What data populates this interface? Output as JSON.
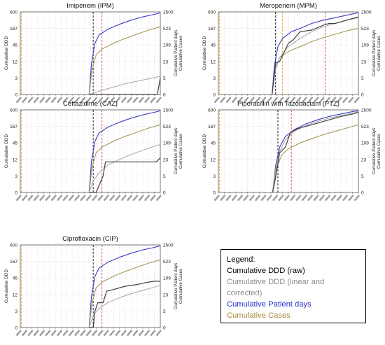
{
  "colors": {
    "raw": "#404040",
    "corrected": "#a6a6a6",
    "patient_days": "#3a3ac8",
    "cases": "#a8955a",
    "black_dash": "#222222",
    "red_dash": "#e05050",
    "orange_dash": "#f0a030",
    "grid": "#dcdcdc"
  },
  "legend": {
    "title": "Legend:",
    "items": [
      {
        "label": "Cumulative DDD (raw)",
        "color": "#000000"
      },
      {
        "label": "Cumulative DDD (linear and corrected)",
        "color": "#8c8c8c"
      },
      {
        "label": "Cumulative Patient days",
        "color": "#2a2ad0"
      },
      {
        "label": "Cumulative Cases",
        "color": "#a8893a"
      }
    ]
  },
  "chart_data": [
    {
      "type": "line",
      "title": "Imipenem (IPM)",
      "ylabel": "Cumulative DDD",
      "y2label": "Cumulative Patient days\nCumulative Cases",
      "y_ticks": [
        "600",
        "167",
        "45",
        "12",
        "3",
        "0"
      ],
      "y2_ticks": [
        "2500",
        "523",
        "109",
        "23",
        "5",
        "0"
      ],
      "x_range": [
        0,
        24
      ],
      "y_range": [
        0,
        1
      ],
      "x_tick_count": 25,
      "x_tick_labels_legible": false,
      "vlines": [
        {
          "x": 0.2,
          "style": "orange"
        },
        {
          "x": 12.5,
          "style": "black"
        },
        {
          "x": 14.0,
          "style": "red"
        }
      ],
      "series": [
        {
          "key": "patient_days",
          "points": [
            [
              11.8,
              0
            ],
            [
              12.2,
              0.38
            ],
            [
              12.8,
              0.62
            ],
            [
              13.5,
              0.72
            ],
            [
              15,
              0.79
            ],
            [
              17,
              0.85
            ],
            [
              19,
              0.9
            ],
            [
              21,
              0.94
            ],
            [
              23,
              0.97
            ],
            [
              24,
              0.99
            ]
          ]
        },
        {
          "key": "cases",
          "points": [
            [
              11.8,
              0
            ],
            [
              12.3,
              0.3
            ],
            [
              13,
              0.48
            ],
            [
              14,
              0.55
            ],
            [
              16,
              0.62
            ],
            [
              18,
              0.68
            ],
            [
              20,
              0.73
            ],
            [
              22,
              0.78
            ],
            [
              24,
              0.82
            ]
          ]
        },
        {
          "key": "corrected",
          "points": [
            [
              11.8,
              0
            ],
            [
              14,
              0.05
            ],
            [
              16,
              0.09
            ],
            [
              18,
              0.13
            ],
            [
              20,
              0.16
            ],
            [
              22,
              0.19
            ],
            [
              24,
              0.22
            ]
          ]
        },
        {
          "key": "raw",
          "points": [
            [
              11.8,
              0
            ],
            [
              23.5,
              0
            ],
            [
              24,
              0.2
            ]
          ]
        }
      ]
    },
    {
      "type": "line",
      "title": "Meropenem (MPM)",
      "ylabel": "Cumulative DDD",
      "y2label": "Cumulative Patient days\nCumulative Cases",
      "y_ticks": [
        "600",
        "167",
        "45",
        "12",
        "3",
        "0"
      ],
      "y2_ticks": [
        "2500",
        "523",
        "109",
        "23",
        "5",
        "0"
      ],
      "x_range": [
        0,
        24
      ],
      "y_range": [
        0,
        1
      ],
      "x_tick_count": 25,
      "x_tick_labels_legible": false,
      "vlines": [
        {
          "x": 0.2,
          "style": "orange"
        },
        {
          "x": 9.8,
          "style": "black"
        },
        {
          "x": 11.0,
          "style": "orange"
        },
        {
          "x": 18.3,
          "style": "red"
        }
      ],
      "series": [
        {
          "key": "patient_days",
          "points": [
            [
              9.2,
              0
            ],
            [
              9.6,
              0.35
            ],
            [
              10.2,
              0.58
            ],
            [
              11,
              0.68
            ],
            [
              12.5,
              0.76
            ],
            [
              14,
              0.8
            ],
            [
              16,
              0.86
            ],
            [
              18,
              0.9
            ],
            [
              20,
              0.93
            ],
            [
              22,
              0.96
            ],
            [
              24,
              0.99
            ]
          ]
        },
        {
          "key": "cases",
          "points": [
            [
              9.2,
              0
            ],
            [
              9.7,
              0.3
            ],
            [
              10.5,
              0.45
            ],
            [
              12,
              0.52
            ],
            [
              14,
              0.58
            ],
            [
              16,
              0.64
            ],
            [
              18,
              0.69
            ],
            [
              20,
              0.73
            ],
            [
              22,
              0.77
            ],
            [
              24,
              0.8
            ]
          ]
        },
        {
          "key": "corrected",
          "points": [
            [
              9.2,
              0
            ],
            [
              9.8,
              0.3
            ],
            [
              10.5,
              0.45
            ],
            [
              12,
              0.58
            ],
            [
              14,
              0.68
            ],
            [
              16,
              0.76
            ],
            [
              18,
              0.82
            ],
            [
              20,
              0.86
            ],
            [
              22,
              0.9
            ],
            [
              24,
              0.93
            ]
          ]
        },
        {
          "key": "raw",
          "points": [
            [
              9.2,
              0
            ],
            [
              9.8,
              0.38
            ],
            [
              10.5,
              0.4
            ],
            [
              11.2,
              0.5
            ],
            [
              12,
              0.62
            ],
            [
              12.8,
              0.66
            ],
            [
              14,
              0.76
            ],
            [
              16,
              0.78
            ],
            [
              18,
              0.84
            ],
            [
              19,
              0.86
            ],
            [
              20,
              0.86
            ],
            [
              21,
              0.88
            ],
            [
              22,
              0.9
            ],
            [
              24,
              0.94
            ]
          ]
        }
      ]
    },
    {
      "type": "line",
      "title": "Ceftazidime (CAZ)",
      "ylabel": "Cumulative DDD",
      "y2label": "Cumulative Patient days\nCumulative Cases",
      "y_ticks": [
        "600",
        "167",
        "45",
        "12",
        "3",
        "0"
      ],
      "y2_ticks": [
        "2500",
        "523",
        "109",
        "23",
        "5",
        "0"
      ],
      "x_range": [
        0,
        24
      ],
      "y_range": [
        0,
        1
      ],
      "x_tick_count": 25,
      "x_tick_labels_legible": false,
      "vlines": [
        {
          "x": 0.2,
          "style": "orange"
        },
        {
          "x": 12.5,
          "style": "black"
        },
        {
          "x": 14.0,
          "style": "red"
        }
      ],
      "series": [
        {
          "key": "patient_days",
          "points": [
            [
              11.8,
              0
            ],
            [
              12.2,
              0.38
            ],
            [
              12.8,
              0.62
            ],
            [
              13.5,
              0.72
            ],
            [
              15,
              0.79
            ],
            [
              17,
              0.85
            ],
            [
              19,
              0.9
            ],
            [
              21,
              0.94
            ],
            [
              23,
              0.97
            ],
            [
              24,
              0.99
            ]
          ]
        },
        {
          "key": "cases",
          "points": [
            [
              11.8,
              0
            ],
            [
              12.3,
              0.3
            ],
            [
              13,
              0.48
            ],
            [
              14,
              0.55
            ],
            [
              16,
              0.62
            ],
            [
              18,
              0.68
            ],
            [
              20,
              0.73
            ],
            [
              22,
              0.78
            ],
            [
              24,
              0.82
            ]
          ]
        },
        {
          "key": "corrected",
          "points": [
            [
              11.8,
              0
            ],
            [
              12.5,
              0.14
            ],
            [
              13.5,
              0.24
            ],
            [
              15,
              0.33
            ],
            [
              17,
              0.4
            ],
            [
              19,
              0.46
            ],
            [
              21,
              0.51
            ],
            [
              23,
              0.56
            ],
            [
              24,
              0.58
            ]
          ]
        },
        {
          "key": "raw",
          "points": [
            [
              11.8,
              0
            ],
            [
              13,
              0
            ],
            [
              14.2,
              0.2
            ],
            [
              14.6,
              0.37
            ],
            [
              16,
              0.37
            ],
            [
              18,
              0.37
            ],
            [
              20,
              0.37
            ],
            [
              22,
              0.37
            ],
            [
              23.3,
              0.37
            ],
            [
              24,
              0.42
            ]
          ]
        }
      ]
    },
    {
      "type": "line",
      "title": "Piperacillin with Tazobactam (PTZ)",
      "ylabel": "Cumulative DDD",
      "y2label": "Cumulative Patient days\nCumulative Cases",
      "y_ticks": [
        "600",
        "167",
        "45",
        "12",
        "3",
        "0"
      ],
      "y2_ticks": [
        "2500",
        "523",
        "109",
        "23",
        "5",
        "0"
      ],
      "x_range": [
        0,
        24
      ],
      "y_range": [
        0,
        1
      ],
      "x_tick_count": 25,
      "x_tick_labels_legible": false,
      "vlines": [
        {
          "x": 0.2,
          "style": "orange"
        },
        {
          "x": 10.2,
          "style": "black"
        },
        {
          "x": 12.5,
          "style": "red"
        }
      ],
      "series": [
        {
          "key": "patient_days",
          "points": [
            [
              9.3,
              0
            ],
            [
              9.8,
              0.32
            ],
            [
              10.5,
              0.55
            ],
            [
              11.5,
              0.68
            ],
            [
              13,
              0.76
            ],
            [
              15,
              0.83
            ],
            [
              17,
              0.88
            ],
            [
              19,
              0.92
            ],
            [
              21,
              0.95
            ],
            [
              23,
              0.98
            ],
            [
              24,
              0.99
            ]
          ]
        },
        {
          "key": "cases",
          "points": [
            [
              9.3,
              0
            ],
            [
              9.9,
              0.28
            ],
            [
              10.8,
              0.45
            ],
            [
              12,
              0.53
            ],
            [
              14,
              0.6
            ],
            [
              16,
              0.65
            ],
            [
              18,
              0.7
            ],
            [
              20,
              0.74
            ],
            [
              22,
              0.78
            ],
            [
              24,
              0.82
            ]
          ]
        },
        {
          "key": "corrected",
          "points": [
            [
              9.3,
              0
            ],
            [
              9.8,
              0.28
            ],
            [
              10.5,
              0.5
            ],
            [
              11.5,
              0.64
            ],
            [
              13,
              0.74
            ],
            [
              15,
              0.81
            ],
            [
              17,
              0.86
            ],
            [
              19,
              0.9
            ],
            [
              21,
              0.93
            ],
            [
              23,
              0.96
            ],
            [
              24,
              0.98
            ]
          ]
        },
        {
          "key": "raw",
          "points": [
            [
              9.3,
              0
            ],
            [
              9.8,
              0.18
            ],
            [
              10.5,
              0.48
            ],
            [
              11.5,
              0.55
            ],
            [
              12.3,
              0.72
            ],
            [
              13.5,
              0.77
            ],
            [
              15,
              0.8
            ],
            [
              17,
              0.84
            ],
            [
              19,
              0.88
            ],
            [
              21,
              0.92
            ],
            [
              23,
              0.95
            ],
            [
              24,
              0.97
            ]
          ]
        }
      ]
    },
    {
      "type": "line",
      "title": "Ciprofloxacin (CIP)",
      "ylabel": "Cumulative DDD",
      "y2label": "Cumulative Patient days\nCumulative Cases",
      "y_ticks": [
        "600",
        "167",
        "45",
        "12",
        "3",
        "0"
      ],
      "y2_ticks": [
        "2500",
        "523",
        "109",
        "23",
        "5",
        "0"
      ],
      "x_range": [
        0,
        24
      ],
      "y_range": [
        0,
        1
      ],
      "x_tick_count": 25,
      "x_tick_labels_legible": false,
      "vlines": [
        {
          "x": 0.2,
          "style": "orange"
        },
        {
          "x": 12.5,
          "style": "black"
        },
        {
          "x": 14.0,
          "style": "red"
        }
      ],
      "series": [
        {
          "key": "patient_days",
          "points": [
            [
              11.8,
              0
            ],
            [
              12.2,
              0.38
            ],
            [
              12.8,
              0.62
            ],
            [
              13.5,
              0.72
            ],
            [
              15,
              0.79
            ],
            [
              17,
              0.85
            ],
            [
              19,
              0.9
            ],
            [
              21,
              0.94
            ],
            [
              23,
              0.97
            ],
            [
              24,
              0.99
            ]
          ]
        },
        {
          "key": "cases",
          "points": [
            [
              11.8,
              0
            ],
            [
              12.3,
              0.3
            ],
            [
              13,
              0.48
            ],
            [
              14,
              0.55
            ],
            [
              16,
              0.62
            ],
            [
              18,
              0.68
            ],
            [
              20,
              0.73
            ],
            [
              22,
              0.78
            ],
            [
              24,
              0.82
            ]
          ]
        },
        {
          "key": "corrected",
          "points": [
            [
              11.8,
              0
            ],
            [
              12.6,
              0.16
            ],
            [
              13.5,
              0.23
            ],
            [
              15,
              0.3
            ],
            [
              17,
              0.36
            ],
            [
              19,
              0.41
            ],
            [
              21,
              0.45
            ],
            [
              23,
              0.49
            ],
            [
              24,
              0.51
            ]
          ]
        },
        {
          "key": "raw",
          "points": [
            [
              11.8,
              0
            ],
            [
              12.5,
              0
            ],
            [
              12.8,
              0.2
            ],
            [
              13.3,
              0.3
            ],
            [
              14.2,
              0.3
            ],
            [
              14.8,
              0.44
            ],
            [
              16,
              0.46
            ],
            [
              18,
              0.5
            ],
            [
              20,
              0.52
            ],
            [
              22,
              0.55
            ],
            [
              23,
              0.56
            ],
            [
              24,
              0.56
            ]
          ]
        }
      ]
    }
  ]
}
